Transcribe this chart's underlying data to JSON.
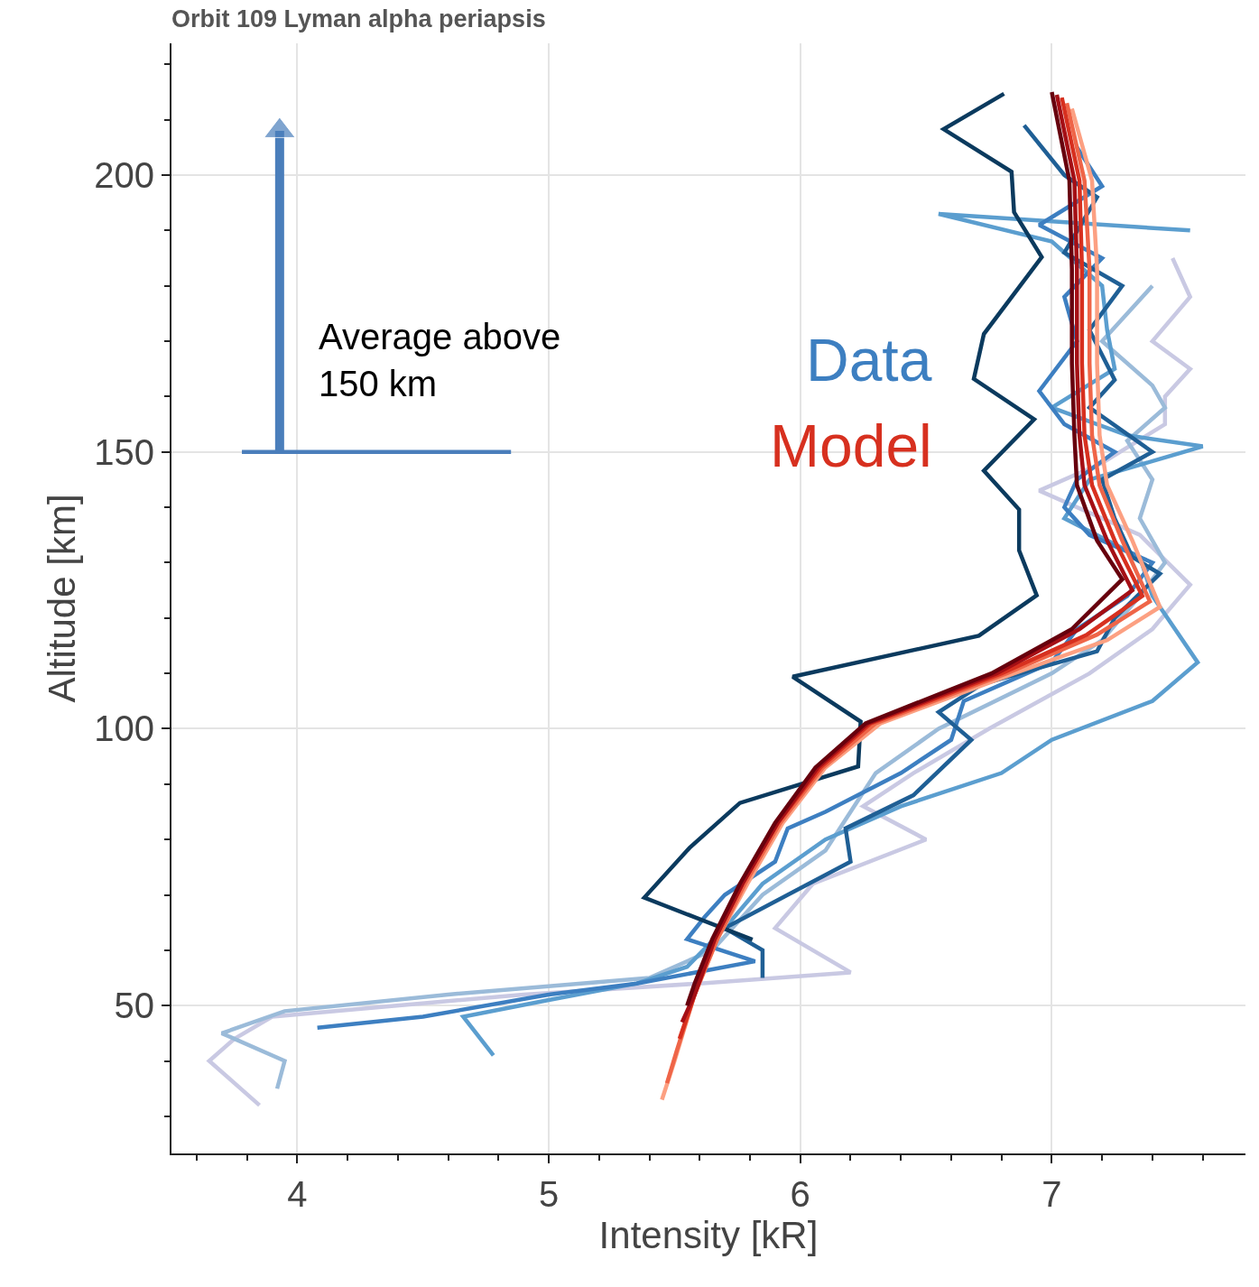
{
  "chart_data": {
    "type": "line",
    "title": "Orbit 109 Lyman alpha periapsis",
    "xlabel": "Intensity [kR]",
    "ylabel": "Altitude [km]",
    "xlim": [
      3.5,
      7.77
    ],
    "ylim": [
      23.3,
      223.8
    ],
    "xticks": [
      {
        "value": 3.6,
        "label": null
      },
      {
        "value": 3.8,
        "label": null
      },
      4,
      {
        "value": 4.2,
        "label": null
      },
      {
        "value": 4.4,
        "label": null
      },
      {
        "value": 4.6,
        "label": null
      },
      {
        "value": 4.8,
        "label": null
      },
      5,
      {
        "value": 5.2,
        "label": null
      },
      {
        "value": 5.4,
        "label": null
      },
      {
        "value": 5.6,
        "label": null
      },
      {
        "value": 5.8,
        "label": null
      },
      6,
      {
        "value": 6.2,
        "label": null
      },
      {
        "value": 6.4,
        "label": null
      },
      {
        "value": 6.6,
        "label": null
      },
      {
        "value": 6.8,
        "label": null
      },
      7,
      {
        "value": 7.2,
        "label": null
      },
      {
        "value": 7.4,
        "label": null
      },
      {
        "value": 7.6,
        "label": null
      }
    ],
    "yticks": [
      {
        "value": 30,
        "label": null
      },
      {
        "value": 40,
        "label": null
      },
      50,
      {
        "value": 60,
        "label": null
      },
      {
        "value": 70,
        "label": null
      },
      {
        "value": 80,
        "label": null
      },
      {
        "value": 90,
        "label": null
      },
      100,
      {
        "value": 110,
        "label": null
      },
      {
        "value": 120,
        "label": null
      },
      {
        "value": 130,
        "label": null
      },
      {
        "value": 140,
        "label": null
      },
      150,
      {
        "value": 160,
        "label": null
      },
      {
        "value": 170,
        "label": null
      },
      {
        "value": 180,
        "label": null
      },
      {
        "value": 190,
        "label": null
      },
      200,
      {
        "value": 210,
        "label": null
      },
      {
        "value": 220,
        "label": null
      }
    ],
    "grid": true,
    "legend": false,
    "marker": "none",
    "line_style": "solid",
    "annotations": [
      "Average above\n150 km"
    ],
    "series": [
      {
        "color": "#4a7ebb",
        "x": [
          3.78,
          4.85
        ],
        "values": [
          150,
          150
        ]
      },
      {
        "color": "#4a7ebb",
        "marker": "triangle",
        "x": [
          3.93,
          3.93
        ],
        "values": [
          150,
          208
        ]
      },
      {
        "color": "#c9c9e3",
        "x": [
          7.48,
          7.55,
          7.4,
          7.55,
          7.45,
          7.45,
          7.2,
          6.95,
          7.35,
          7.55,
          7.4,
          7.15,
          6.75,
          6.45,
          6.25,
          6.5,
          6.05,
          5.9,
          6.2,
          5.6,
          4.9,
          3.9,
          3.75,
          3.65,
          3.85
        ],
        "values": [
          185,
          178,
          170,
          165,
          160,
          155,
          148,
          143,
          135,
          126,
          118,
          110,
          100,
          92,
          86,
          80,
          72,
          64,
          56,
          54,
          52,
          48,
          44,
          40,
          32
        ]
      },
      {
        "color": "#9bbbd9",
        "x": [
          7.4,
          7.2,
          7.4,
          7.45,
          7.3,
          7.4,
          7.35,
          7.45,
          7.35,
          7.2,
          7.0,
          6.55,
          6.3,
          6.2,
          6.1,
          5.85,
          5.65,
          5.4,
          4.6,
          3.95,
          3.7,
          3.95,
          3.92
        ],
        "values": [
          180,
          170,
          162,
          158,
          152,
          145,
          138,
          130,
          124,
          116,
          110,
          100,
          92,
          85,
          78,
          70,
          60,
          55,
          52,
          49,
          45,
          40,
          35
        ]
      },
      {
        "color": "#5b9ecf",
        "x": [
          7.55,
          6.55,
          7.0,
          7.2,
          7.22,
          7.25,
          7.0,
          7.3,
          7.6,
          7.15,
          7.05,
          7.35,
          7.4,
          7.58,
          7.4,
          7.0,
          6.8,
          6.4,
          6.1,
          5.85,
          5.7,
          5.55,
          5.35,
          5.0,
          4.66,
          4.78
        ],
        "values": [
          190,
          193,
          188,
          180,
          172,
          165,
          158,
          153,
          151,
          145,
          138,
          131,
          124,
          112,
          105,
          98,
          92,
          86,
          80,
          72,
          64,
          57,
          54,
          51,
          48,
          41
        ]
      },
      {
        "name": "Data",
        "color": "#3d7fc1",
        "x": [
          7.1,
          7.2,
          6.95,
          7.2,
          7.05,
          7.1,
          6.95,
          7.05,
          7.25,
          7.1,
          7.05,
          7.15,
          7.4,
          7.3,
          7.1,
          7.0,
          6.65,
          6.6,
          6.4,
          6.1,
          5.95,
          5.9,
          5.7,
          5.62,
          5.55,
          5.82,
          5.35,
          5.0,
          4.5,
          4.08
        ],
        "values": [
          205,
          198,
          191,
          185,
          178,
          170,
          161,
          155,
          150,
          145,
          140,
          135,
          130,
          124,
          118,
          112,
          105,
          98,
          92,
          85,
          82,
          76,
          70,
          66,
          62,
          58,
          54,
          52,
          48,
          46
        ]
      },
      {
        "color": "#1f5f95",
        "x": [
          6.89,
          7.05,
          7.18,
          7.05,
          7.28,
          7.15,
          7.25,
          7.15,
          7.4,
          7.2,
          7.25,
          7.32,
          7.43,
          7.25,
          7.18,
          6.72,
          6.55,
          6.68,
          6.45,
          6.18,
          6.2,
          5.95,
          5.7,
          5.85,
          5.85
        ],
        "values": [
          209,
          200,
          196,
          186,
          180,
          172,
          163,
          158,
          150,
          145,
          138,
          131,
          128,
          120,
          114,
          108,
          103,
          98,
          88,
          82,
          76,
          70,
          64,
          60,
          55
        ]
      },
      {
        "color": "#0b3a5e",
        "x": [
          6.81,
          6.57,
          6.84,
          6.85,
          6.96,
          6.73,
          6.69,
          6.93,
          6.73,
          6.87,
          6.87,
          6.94,
          6.71,
          5.97,
          6.24,
          6.23,
          5.76,
          5.56,
          5.38,
          5.81
        ],
        "values": [
          214.7,
          208.3,
          200.6,
          193.3,
          185.2,
          171.3,
          163.2,
          155.9,
          146.6,
          139.6,
          132.2,
          124.1,
          116.8,
          109.4,
          101.3,
          93.2,
          86.6,
          78.5,
          69.5,
          61.9
        ]
      },
      {
        "color": "#fca082",
        "x": [
          7.08,
          7.16,
          7.18,
          7.18,
          7.19,
          7.22,
          7.32,
          7.43,
          7.22,
          6.85,
          6.32,
          6.1,
          5.93,
          5.79,
          5.67,
          5.58,
          5.5,
          5.45
        ],
        "values": [
          212,
          199,
          183,
          166,
          153,
          144,
          134,
          122,
          116,
          110,
          101,
          93,
          83,
          72,
          62,
          52,
          40,
          33
        ]
      },
      {
        "color": "#ef6548",
        "x": [
          7.06,
          7.13,
          7.15,
          7.15,
          7.16,
          7.19,
          7.28,
          7.39,
          7.18,
          6.82,
          6.3,
          6.09,
          5.92,
          5.78,
          5.67,
          5.58,
          5.51,
          5.47
        ],
        "values": [
          213,
          199,
          183,
          166,
          153,
          144,
          134,
          123,
          117,
          110,
          101,
          93,
          83,
          72,
          62,
          52,
          42,
          36
        ]
      },
      {
        "name": "Model",
        "color": "#d7301f",
        "x": [
          7.04,
          7.11,
          7.12,
          7.12,
          7.13,
          7.16,
          7.25,
          7.36,
          7.14,
          6.8,
          6.28,
          6.08,
          5.91,
          5.77,
          5.66,
          5.58,
          5.52
        ],
        "values": [
          214,
          199,
          183,
          166,
          153,
          144,
          134,
          124,
          117,
          110,
          101,
          93,
          83,
          72,
          62,
          52,
          44
        ]
      },
      {
        "color": "#a50f15",
        "x": [
          7.02,
          7.09,
          7.1,
          7.1,
          7.11,
          7.13,
          7.22,
          7.32,
          7.11,
          6.78,
          6.27,
          6.07,
          5.91,
          5.77,
          5.66,
          5.58,
          5.53
        ],
        "values": [
          214.5,
          199,
          183,
          166,
          153,
          144,
          134,
          125,
          118,
          110,
          101,
          93,
          83,
          72,
          62,
          52,
          47
        ]
      },
      {
        "color": "#67000d",
        "x": [
          7.0,
          7.07,
          7.08,
          7.08,
          7.09,
          7.1,
          7.18,
          7.28,
          7.08,
          6.76,
          6.26,
          6.06,
          5.9,
          5.76,
          5.65,
          5.58,
          5.55
        ],
        "values": [
          215,
          199,
          183,
          166,
          153,
          144,
          134,
          127,
          118,
          110,
          101,
          93,
          83,
          72,
          62,
          54,
          50
        ]
      }
    ]
  }
}
